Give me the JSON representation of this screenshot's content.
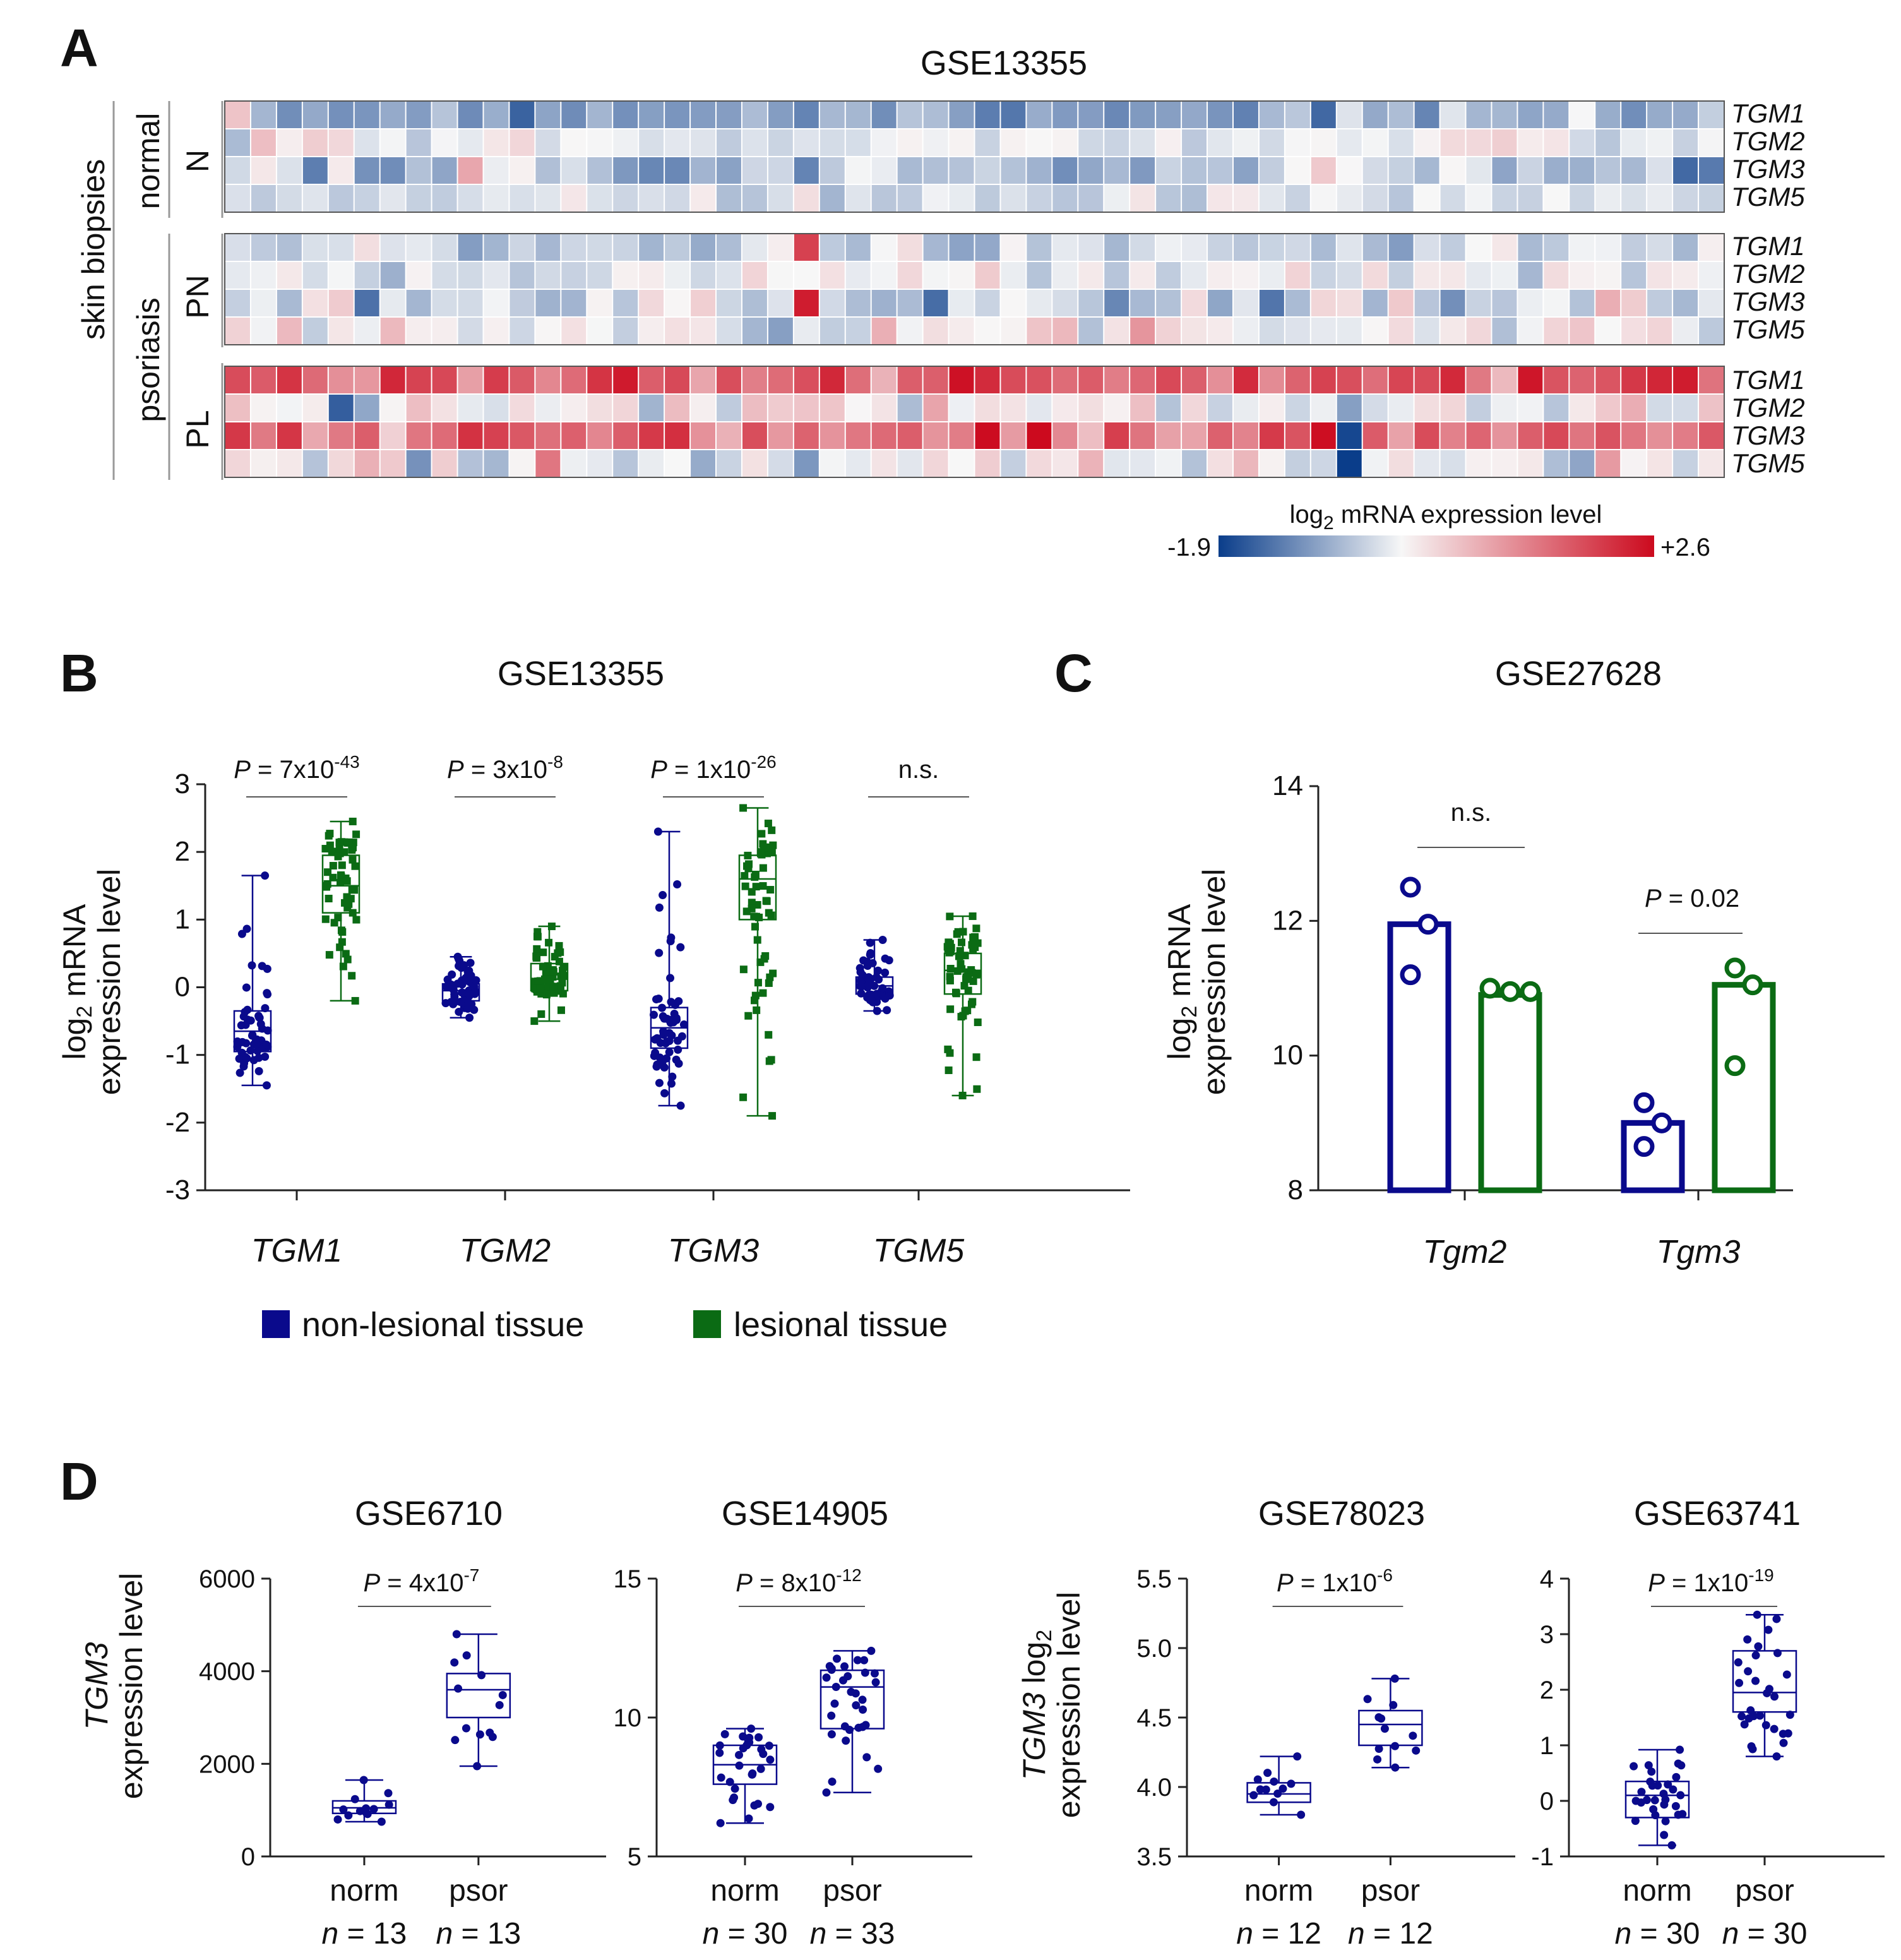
{
  "colors": {
    "blue": "#0a0a8c",
    "green": "#0b6b14",
    "heat_low": "#0a3d8a",
    "heat_high": "#cc0a1e",
    "heat_mid": "#f7f7f7"
  },
  "panelA": {
    "letter": "A",
    "title": "GSE13355",
    "side_label_outer": "skin biopsies",
    "label_normal": "normal",
    "label_psoriasis": "psoriasis",
    "colorbar": {
      "title_prefix": "log",
      "title_sub": "2",
      "title_suffix": " mRNA expression level",
      "min_label": "-1.9",
      "max_label": "+2.6"
    },
    "blocks": [
      {
        "label": "N",
        "genes": [
          "TGM1",
          "TGM2",
          "TGM3",
          "TGM5"
        ]
      },
      {
        "label": "PN",
        "genes": [
          "TGM1",
          "TGM2",
          "TGM3",
          "TGM5"
        ]
      },
      {
        "label": "PL",
        "genes": [
          "TGM1",
          "TGM2",
          "TGM3",
          "TGM5"
        ]
      }
    ]
  },
  "chart_data": [
    {
      "id": "B",
      "type": "box",
      "letter": "B",
      "title": "GSE13355",
      "ylabel_line1_prefix": "log",
      "ylabel_line1_sub": "2",
      "ylabel_line1_suffix": " mRNA",
      "ylabel_line2": "expression level",
      "ylim": [
        -3,
        3
      ],
      "yticks": [
        "3",
        "2",
        "1",
        "0",
        "-1",
        "-2",
        "-3"
      ],
      "categories": [
        "TGM1",
        "TGM2",
        "TGM3",
        "TGM5"
      ],
      "pvalues": [
        {
          "prefix": "P",
          "text": " = 7x10",
          "exp": "-43"
        },
        {
          "prefix": "P",
          "text": " = 3x10",
          "exp": "-8"
        },
        {
          "prefix": "P",
          "text": " = 1x10",
          "exp": "-26"
        },
        {
          "prefix": "",
          "text": "n.s.",
          "exp": ""
        }
      ],
      "series": [
        {
          "name": "non-lesional tissue",
          "boxes": [
            [
              -1.45,
              -0.95,
              -0.65,
              -0.35,
              1.65
            ],
            [
              -0.45,
              -0.2,
              -0.05,
              0.05,
              0.45
            ],
            [
              -1.75,
              -0.9,
              -0.6,
              -0.3,
              2.3
            ],
            [
              -0.35,
              -0.1,
              0.02,
              0.15,
              0.7
            ]
          ]
        },
        {
          "name": "lesional tissue",
          "boxes": [
            [
              -0.2,
              1.1,
              1.5,
              1.95,
              2.45
            ],
            [
              -0.5,
              -0.05,
              0.12,
              0.35,
              0.9
            ],
            [
              -1.9,
              1.0,
              1.6,
              1.95,
              2.65
            ],
            [
              -1.6,
              -0.1,
              0.25,
              0.5,
              1.05
            ]
          ]
        }
      ],
      "legend": [
        "non-lesional tissue",
        "lesional tissue"
      ]
    },
    {
      "id": "C",
      "type": "bar",
      "letter": "C",
      "title": "GSE27628",
      "ylabel_line1_prefix": "log",
      "ylabel_line1_sub": "2",
      "ylabel_line1_suffix": " mRNA",
      "ylabel_line2": "expression level",
      "ylim": [
        8,
        14
      ],
      "yticks": [
        "14",
        "12",
        "10",
        "8"
      ],
      "categories": [
        "Tgm2",
        "Tgm3"
      ],
      "pvalues": [
        {
          "prefix": "",
          "text": "n.s.",
          "exp": ""
        },
        {
          "prefix": "P",
          "text": " = 0.02",
          "exp": ""
        }
      ],
      "series": [
        {
          "name": "non-lesional tissue",
          "values": [
            11.95,
            9.0
          ],
          "points": [
            [
              12.5,
              11.95,
              11.2
            ],
            [
              9.3,
              9.0,
              8.65
            ]
          ]
        },
        {
          "name": "lesional tissue",
          "values": [
            10.9,
            11.05
          ],
          "points": [
            [
              11.0,
              10.95,
              10.95
            ],
            [
              11.3,
              11.05,
              9.85
            ]
          ]
        }
      ]
    },
    {
      "id": "D1",
      "type": "box",
      "title": "GSE6710",
      "ylabel_line1": "TGM3",
      "ylabel_line2": "expression level",
      "ylim": [
        0,
        6000
      ],
      "yticks": [
        "6000",
        "4000",
        "2000",
        "0"
      ],
      "categories": [
        "norm",
        "psor"
      ],
      "ns": [
        "n = 13",
        "n = 13"
      ],
      "pvalue": {
        "prefix": "P",
        "text": " = 4x10",
        "exp": "-7"
      },
      "boxes": [
        [
          750,
          930,
          1050,
          1200,
          1650
        ],
        [
          1950,
          3000,
          3600,
          3950,
          4800
        ]
      ]
    },
    {
      "id": "D2",
      "type": "box",
      "title": "GSE14905",
      "ylim": [
        5,
        15
      ],
      "yticks": [
        "15",
        "10",
        "5"
      ],
      "categories": [
        "norm",
        "psor"
      ],
      "ns": [
        "n = 30",
        "n = 33"
      ],
      "pvalue": {
        "prefix": "P",
        "text": " = 8x10",
        "exp": "-12"
      },
      "boxes": [
        [
          6.2,
          7.6,
          8.3,
          9.0,
          9.6
        ],
        [
          7.3,
          9.6,
          11.1,
          11.7,
          12.4
        ]
      ]
    },
    {
      "id": "D3",
      "type": "box",
      "title": "GSE78023",
      "ylabel_line1": "TGM3 log",
      "ylabel_line1_sub": "2",
      "ylabel_line2": "expression level",
      "ylim": [
        3.5,
        5.5
      ],
      "yticks": [
        "5.5",
        "5.0",
        "4.5",
        "4.0",
        "3.5"
      ],
      "categories": [
        "norm",
        "psor"
      ],
      "ns": [
        "n = 12",
        "n = 12"
      ],
      "pvalue": {
        "prefix": "P",
        "text": " = 1x10",
        "exp": "-6"
      },
      "boxes": [
        [
          3.8,
          3.89,
          3.95,
          4.03,
          4.22
        ],
        [
          4.14,
          4.3,
          4.45,
          4.55,
          4.78
        ]
      ]
    },
    {
      "id": "D4",
      "type": "box",
      "title": "GSE63741",
      "ylim": [
        -1,
        4
      ],
      "yticks": [
        "4",
        "3",
        "2",
        "1",
        "0",
        "-1"
      ],
      "categories": [
        "norm",
        "psor"
      ],
      "ns": [
        "n = 30",
        "n = 30"
      ],
      "pvalue": {
        "prefix": "P",
        "text": " = 1x10",
        "exp": "-19"
      },
      "boxes": [
        [
          -0.8,
          -0.3,
          0.1,
          0.35,
          0.92
        ],
        [
          0.8,
          1.6,
          1.95,
          2.7,
          3.35
        ]
      ]
    }
  ],
  "panelD_letter": "D"
}
